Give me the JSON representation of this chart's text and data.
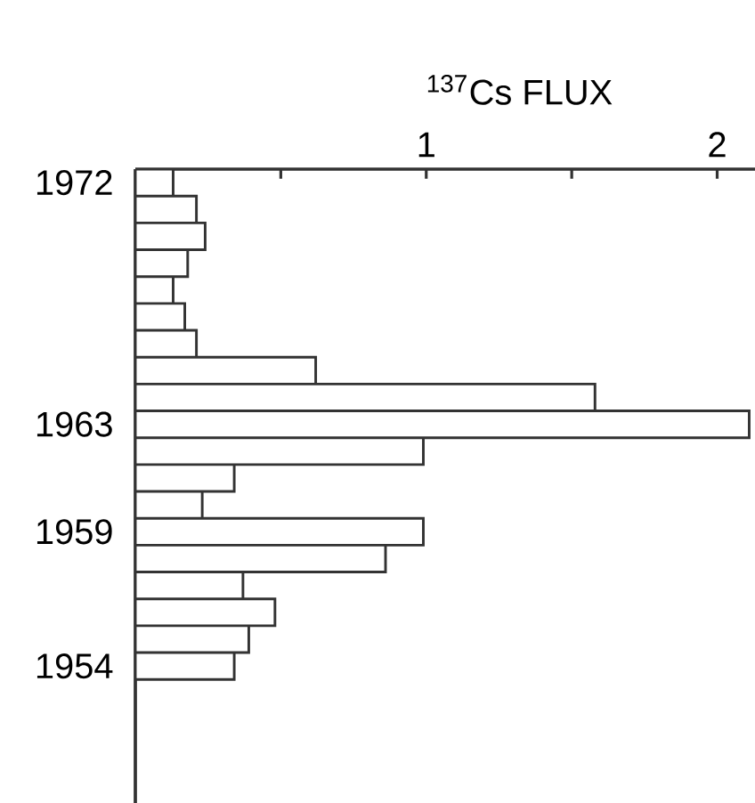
{
  "chart_data": {
    "type": "bar",
    "orientation": "horizontal",
    "xlabel": "$^{137}$Cs FLUX",
    "categories": [
      "1972",
      null,
      null,
      null,
      null,
      null,
      null,
      null,
      null,
      "1963",
      null,
      null,
      null,
      "1959",
      null,
      null,
      null,
      null,
      "1954"
    ],
    "values": [
      0.13,
      0.21,
      0.24,
      0.18,
      0.13,
      0.17,
      0.21,
      0.62,
      1.58,
      2.11,
      0.99,
      0.34,
      0.23,
      0.99,
      0.86,
      0.37,
      0.48,
      0.39,
      0.34
    ],
    "color": "#ffffff",
    "xlim": [
      0,
      2.13
    ],
    "xticks": [
      {
        "value": 0.5,
        "label": null
      },
      1,
      {
        "value": 1.5,
        "label": null
      },
      2
    ]
  }
}
